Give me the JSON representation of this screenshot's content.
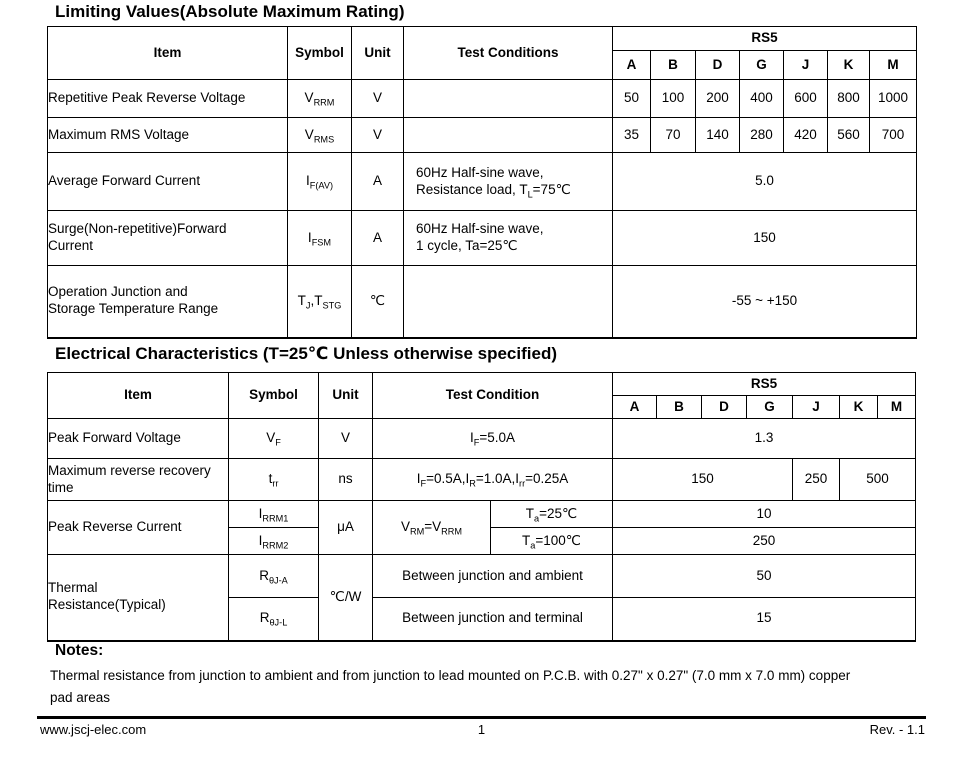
{
  "limiting": {
    "title": "Limiting Values(Absolute Maximum Rating)",
    "headers": {
      "item": "Item",
      "symbol": "Symbol",
      "unit": "Unit",
      "test": "Test Conditions",
      "series": "RS5"
    },
    "grades": [
      "A",
      "B",
      "D",
      "G",
      "J",
      "K",
      "M"
    ],
    "rows": [
      {
        "item": "Repetitive Peak Reverse Voltage",
        "symbol": "V{RRM}",
        "unit": "V",
        "test": "",
        "values": [
          "50",
          "100",
          "200",
          "400",
          "600",
          "800",
          "1000"
        ]
      },
      {
        "item": "Maximum RMS Voltage",
        "symbol": "V{RMS}",
        "unit": "V",
        "test": "",
        "values": [
          "35",
          "70",
          "140",
          "280",
          "420",
          "560",
          "700"
        ]
      },
      {
        "item": "Average Forward Current",
        "symbol": "I{F(AV)}",
        "unit": "A",
        "test": "60Hz Half-sine wave,\nResistance load, T{L}=75℃",
        "value": "5.0"
      },
      {
        "item": "Surge(Non-repetitive)Forward\nCurrent",
        "symbol": "I{FSM}",
        "unit": "A",
        "test": "60Hz Half-sine wave,\n1 cycle, Ta=25℃",
        "value": "150"
      },
      {
        "item": "Operation Junction and\nStorage Temperature Range",
        "symbol": "T{J},T{STG}",
        "unit": "℃",
        "test": "",
        "value": "-55 ~ +150"
      }
    ]
  },
  "electrical": {
    "title": "Electrical Characteristics (T=25℃ Unless otherwise specified)",
    "headers": {
      "item": "Item",
      "symbol": "Symbol",
      "unit": "Unit",
      "test": "Test Condition",
      "series": "RS5"
    },
    "grades": [
      "A",
      "B",
      "D",
      "G",
      "J",
      "K",
      "M"
    ],
    "peak_forward": {
      "item": "Peak Forward Voltage",
      "symbol": "V{F}",
      "unit": "V",
      "test": "I{F}=5.0A",
      "value": "1.3"
    },
    "trr": {
      "item": "Maximum reverse recovery\ntime",
      "symbol": "t{rr}",
      "unit": "ns",
      "test": "I{F}=0.5A,I{R}=1.0A,I{rr}=0.25A",
      "value_abdg": "150",
      "value_j": "250",
      "value_km": "500"
    },
    "reverse_current": {
      "item": "Peak Reverse Current",
      "symbol_1": "I{RRM1}",
      "symbol_2": "I{RRM2}",
      "unit": "μA",
      "test": "V{RM}=V{RRM}",
      "cond_1": "T{a}=25℃",
      "cond_2": "T{a}=100℃",
      "value_1": "10",
      "value_2": "250"
    },
    "thermal": {
      "item": "Thermal\nResistance(Typical)",
      "symbol_1": "R{θJ-A}",
      "symbol_2": "R{θJ-L}",
      "unit": "℃/W",
      "test_1": "Between junction and ambient",
      "test_2": "Between junction and terminal",
      "value_1": "50",
      "value_2": "15"
    }
  },
  "notes": {
    "heading": "Notes:",
    "text": "Thermal resistance from junction to ambient and from junction to lead mounted on P.C.B. with 0.27\" x 0.27\" (7.0 mm x 7.0 mm) copper\npad areas"
  },
  "footer": {
    "website": "www.jscj-elec.com",
    "page_number": "1",
    "revision": "Rev. - 1.1"
  }
}
